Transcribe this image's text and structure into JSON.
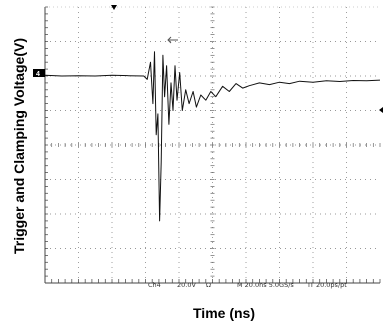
{
  "chart_data": {
    "type": "line",
    "xlabel": "Time (ns)",
    "ylabel": "Trigger and Clamping Voltage(V)",
    "x_divisions": 10,
    "y_divisions": 8,
    "grid": true,
    "channel_marker": "4",
    "readout": {
      "channel": "Ch4",
      "volts_per_div": "20.0V",
      "coupling": "Ω",
      "timebase": "M 20.0ns 5.0GS/s",
      "record": "IT 20.0ps/pt"
    },
    "series": [
      {
        "points": [
          [
            0.0,
            6.02
          ],
          [
            0.5,
            6.0
          ],
          [
            1.0,
            6.01
          ],
          [
            1.5,
            6.0
          ],
          [
            2.0,
            6.02
          ],
          [
            2.5,
            6.01
          ],
          [
            2.95,
            6.0
          ],
          [
            3.05,
            5.9
          ],
          [
            3.15,
            6.4
          ],
          [
            3.22,
            5.2
          ],
          [
            3.27,
            6.7
          ],
          [
            3.32,
            4.3
          ],
          [
            3.37,
            4.9
          ],
          [
            3.42,
            1.8
          ],
          [
            3.47,
            3.5
          ],
          [
            3.52,
            6.6
          ],
          [
            3.57,
            5.4
          ],
          [
            3.63,
            6.3
          ],
          [
            3.7,
            4.6
          ],
          [
            3.76,
            5.8
          ],
          [
            3.82,
            5.0
          ],
          [
            3.88,
            6.3
          ],
          [
            3.94,
            5.3
          ],
          [
            4.02,
            6.1
          ],
          [
            4.1,
            5.0
          ],
          [
            4.2,
            5.6
          ],
          [
            4.3,
            5.2
          ],
          [
            4.42,
            5.55
          ],
          [
            4.52,
            5.1
          ],
          [
            4.65,
            5.45
          ],
          [
            4.8,
            5.3
          ],
          [
            4.95,
            5.55
          ],
          [
            5.1,
            5.4
          ],
          [
            5.3,
            5.7
          ],
          [
            5.5,
            5.55
          ],
          [
            5.7,
            5.78
          ],
          [
            5.9,
            5.65
          ],
          [
            6.1,
            5.72
          ],
          [
            6.4,
            5.8
          ],
          [
            6.7,
            5.75
          ],
          [
            7.0,
            5.82
          ],
          [
            7.3,
            5.78
          ],
          [
            7.6,
            5.85
          ],
          [
            8.0,
            5.82
          ],
          [
            8.4,
            5.86
          ],
          [
            8.8,
            5.84
          ],
          [
            9.2,
            5.87
          ],
          [
            9.6,
            5.86
          ],
          [
            10.0,
            5.88
          ]
        ]
      }
    ]
  }
}
